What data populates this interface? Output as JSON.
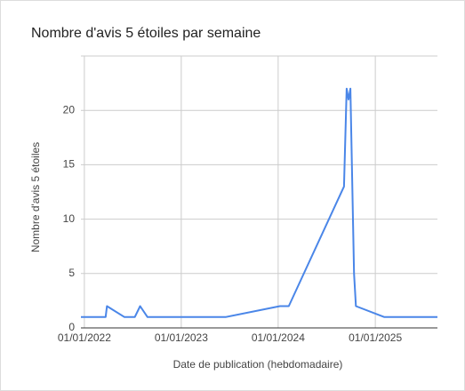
{
  "chart_data": {
    "type": "line",
    "title": "Nombre d'avis 5 étoiles par semaine",
    "x_label": "Date de publication (hebdomadaire)",
    "y_label": "Nombre d'avis 5 étoiles",
    "x": [
      "19/12/2021",
      "22/03/2022",
      "27/03/2022",
      "01/06/2022",
      "10/07/2022",
      "30/07/2022",
      "27/08/2022",
      "17/06/2023",
      "08/01/2024",
      "10/02/2024",
      "05/09/2024",
      "15/09/2024",
      "22/09/2024",
      "29/09/2024",
      "13/10/2024",
      "20/10/2024",
      "04/02/2025",
      "23/08/2025"
    ],
    "series": [
      {
        "name": "Nombre d'avis 5 étoiles",
        "color": "#4a86e8",
        "values": [
          1,
          1,
          2,
          1,
          1,
          2,
          1,
          1,
          2,
          2,
          13,
          22,
          21,
          22,
          5,
          2,
          1,
          1
        ]
      }
    ],
    "xlim": [
      "19/12/2021",
      "23/08/2025"
    ],
    "xticks": [
      "01/01/2022",
      "01/01/2023",
      "01/01/2024",
      "01/01/2025"
    ],
    "ylim": [
      0,
      25
    ],
    "yticks": [
      0,
      5,
      10,
      15,
      20
    ],
    "grid": true
  }
}
